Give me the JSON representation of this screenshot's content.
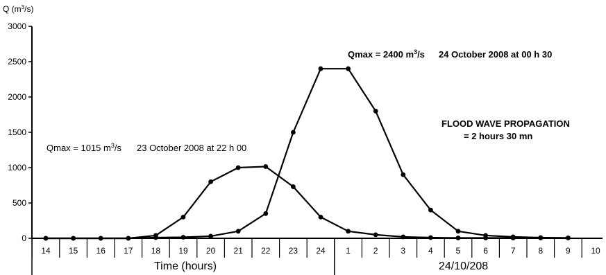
{
  "chart_data": {
    "type": "line",
    "ylabel": "Q (m3/s)",
    "xlabel": "Time (hours)",
    "date_label": "24/10/208",
    "ylim": [
      0,
      3000
    ],
    "y_ticks": [
      0,
      500,
      1000,
      1500,
      2000,
      2500,
      3000
    ],
    "categories": [
      "14",
      "15",
      "16",
      "17",
      "18",
      "19",
      "20",
      "21",
      "22",
      "23",
      "24",
      "1",
      "2",
      "3",
      "4",
      "5",
      "6",
      "7",
      "8",
      "9",
      "10"
    ],
    "series": [
      {
        "values": [
          0,
          0,
          0,
          0,
          40,
          300,
          800,
          1000,
          1015,
          730,
          300,
          100,
          50,
          20,
          10,
          5,
          5,
          5,
          5,
          5,
          null
        ]
      },
      {
        "values": [
          0,
          0,
          0,
          0,
          10,
          15,
          30,
          100,
          350,
          1500,
          2400,
          2400,
          1800,
          900,
          400,
          100,
          40,
          20,
          10,
          5,
          null
        ]
      }
    ],
    "annotations": {
      "qmax1": {
        "prefix": "Qmax = 1015 m",
        "sup": "3",
        "suffix": "/s",
        "date": "23 October 2008 at 22 h 00"
      },
      "qmax2": {
        "prefix": "Qmax = 2400 m",
        "sup": "3",
        "suffix": "/s",
        "date": "24 October 2008 at 00 h 30"
      },
      "propagation_line1": "FLOOD WAVE  PROPAGATION",
      "propagation_line2": "= 2 hours 30 mn"
    },
    "ylabel_parts": {
      "prefix": "Q (m",
      "sup": "3",
      "suffix": "/s)"
    },
    "grid": false,
    "legend": "none"
  }
}
